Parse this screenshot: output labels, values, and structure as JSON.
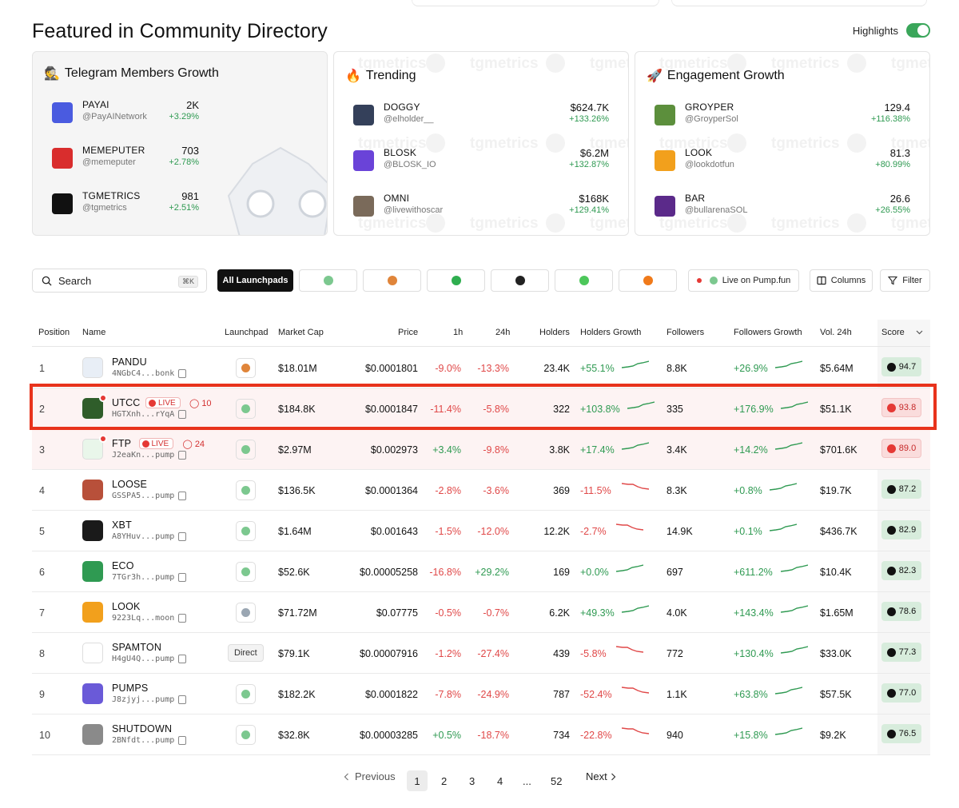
{
  "section_title": "Featured in Community Directory",
  "highlights_label": "Highlights",
  "watermark": "tgmetrics",
  "cards": [
    {
      "title": "Telegram Members Growth",
      "emoji": "🕵",
      "rows": [
        {
          "name": "PAYAI",
          "handle": "@PayAINetwork",
          "value": "2K",
          "change": "+3.29%",
          "color": "#4a5be0"
        },
        {
          "name": "MEMEPUTER",
          "handle": "@memeputer",
          "value": "703",
          "change": "+2.78%",
          "color": "#d92d2d"
        },
        {
          "name": "TGMETRICS",
          "handle": "@tgmetrics",
          "value": "981",
          "change": "+2.51%",
          "color": "#111111"
        }
      ]
    },
    {
      "title": "Trending",
      "emoji": "🔥",
      "rows": [
        {
          "name": "DOGGY",
          "handle": "@elholder__",
          "value": "$624.7K",
          "change": "+133.26%",
          "color": "#34405a"
        },
        {
          "name": "BLOSK",
          "handle": "@BLOSK_IO",
          "value": "$6.2M",
          "change": "+132.87%",
          "color": "#6a43d8"
        },
        {
          "name": "OMNI",
          "handle": "@livewithoscar",
          "value": "$168K",
          "change": "+129.41%",
          "color": "#7a6a5a"
        }
      ]
    },
    {
      "title": "Engagement Growth",
      "emoji": "🚀",
      "rows": [
        {
          "name": "GROYPER",
          "handle": "@GroyperSol",
          "value": "129.4",
          "change": "+116.38%",
          "color": "#5c8f3c"
        },
        {
          "name": "LOOK",
          "handle": "@lookdotfun",
          "value": "81.3",
          "change": "+80.99%",
          "color": "#f2a01c"
        },
        {
          "name": "BAR",
          "handle": "@bullarenaSOL",
          "value": "26.6",
          "change": "+26.55%",
          "color": "#5b2a8a"
        }
      ]
    }
  ],
  "toolbar": {
    "search_placeholder": "Search",
    "search_shortcut": "⌘K",
    "all_launchpads": "All Launchpads",
    "launchpad_icons": [
      {
        "name": "pump-icon",
        "color": "#7cc88f"
      },
      {
        "name": "bonk-icon",
        "color": "#e0853a"
      },
      {
        "name": "moon-icon",
        "color": "#2fae4f"
      },
      {
        "name": "orbit-icon",
        "color": "#222222"
      },
      {
        "name": "b-icon",
        "color": "#4cc75a"
      },
      {
        "name": "pac-icon",
        "color": "#f07a1a"
      }
    ],
    "live_on_pump": "Live on Pump.fun",
    "columns": "Columns",
    "filter": "Filter"
  },
  "table": {
    "headers": {
      "position": "Position",
      "name": "Name",
      "launchpad": "Launchpad",
      "market_cap": "Market Cap",
      "price": "Price",
      "h1": "1h",
      "h24": "24h",
      "holders": "Holders",
      "holders_growth": "Holders Growth",
      "followers": "Followers",
      "followers_growth": "Followers Growth",
      "vol24": "Vol. 24h",
      "score": "Score"
    },
    "rows": [
      {
        "pos": "1",
        "name": "PANDU",
        "addr": "4NGbC4...bonk",
        "live": "",
        "viewers": "",
        "launchpad": "bonk",
        "mcap": "$18.01M",
        "price": "$0.0001801",
        "h1": "-9.0%",
        "h24": "-13.3%",
        "holders": "23.4K",
        "hgrow": "+55.1%",
        "followers": "8.8K",
        "fgrow": "+26.9%",
        "vol": "$5.64M",
        "score": "94.7",
        "score_tone": "green",
        "color": "#e8eef6",
        "text": "🐼"
      },
      {
        "pos": "2",
        "name": "UTCC",
        "addr": "HGTXnh...rYqA",
        "live": "LIVE",
        "viewers": "10",
        "launchpad": "pump",
        "mcap": "$184.8K",
        "price": "$0.0001847",
        "h1": "-11.4%",
        "h24": "-5.8%",
        "holders": "322",
        "hgrow": "+103.8%",
        "followers": "335",
        "fgrow": "+176.9%",
        "vol": "$51.1K",
        "score": "93.8",
        "score_tone": "red",
        "color": "#2f5d2a",
        "text": "UC"
      },
      {
        "pos": "3",
        "name": "FTP",
        "addr": "J2eaKn...pump",
        "live": "LIVE",
        "viewers": "24",
        "launchpad": "pump",
        "mcap": "$2.97M",
        "price": "$0.002973",
        "h1": "+3.4%",
        "h24": "-9.8%",
        "holders": "3.8K",
        "hgrow": "+17.4%",
        "followers": "3.4K",
        "fgrow": "+14.2%",
        "vol": "$701.6K",
        "score": "89.0",
        "score_tone": "red",
        "color": "#e9f6ea",
        "text": "FTP"
      },
      {
        "pos": "4",
        "name": "LOOSE",
        "addr": "GSSPA5...pump",
        "live": "",
        "viewers": "",
        "launchpad": "pump",
        "mcap": "$136.5K",
        "price": "$0.0001364",
        "h1": "-2.8%",
        "h24": "-3.6%",
        "holders": "369",
        "hgrow": "-11.5%",
        "followers": "8.3K",
        "fgrow": "+0.8%",
        "vol": "$19.7K",
        "score": "87.2",
        "score_tone": "green",
        "color": "#b8503a",
        "text": ""
      },
      {
        "pos": "5",
        "name": "XBT",
        "addr": "A8YHuv...pump",
        "live": "",
        "viewers": "",
        "launchpad": "pump",
        "mcap": "$1.64M",
        "price": "$0.001643",
        "h1": "-1.5%",
        "h24": "-12.0%",
        "holders": "12.2K",
        "hgrow": "-2.7%",
        "followers": "14.9K",
        "fgrow": "+0.1%",
        "vol": "$436.7K",
        "score": "82.9",
        "score_tone": "green",
        "color": "#1a1a1a",
        "text": "XBT"
      },
      {
        "pos": "6",
        "name": "ECO",
        "addr": "7TGr3h...pump",
        "live": "",
        "viewers": "",
        "launchpad": "pump",
        "mcap": "$52.6K",
        "price": "$0.00005258",
        "h1": "-16.8%",
        "h24": "+29.2%",
        "holders": "169",
        "hgrow": "+0.0%",
        "followers": "697",
        "fgrow": "+611.2%",
        "vol": "$10.4K",
        "score": "82.3",
        "score_tone": "green",
        "color": "#2f9a52",
        "text": ""
      },
      {
        "pos": "7",
        "name": "LOOK",
        "addr": "9223Lq...moon",
        "live": "",
        "viewers": "",
        "launchpad": "moon",
        "mcap": "$71.72M",
        "price": "$0.07775",
        "h1": "-0.5%",
        "h24": "-0.7%",
        "holders": "6.2K",
        "hgrow": "+49.3%",
        "followers": "4.0K",
        "fgrow": "+143.4%",
        "vol": "$1.65M",
        "score": "78.6",
        "score_tone": "green",
        "color": "#f2a01c",
        "text": ""
      },
      {
        "pos": "8",
        "name": "SPAMTON",
        "addr": "H4gU4Q...pump",
        "live": "",
        "viewers": "",
        "launchpad": "direct",
        "launchpad_label": "Direct",
        "mcap": "$79.1K",
        "price": "$0.00007916",
        "h1": "-1.2%",
        "h24": "-27.4%",
        "holders": "439",
        "hgrow": "-5.8%",
        "followers": "772",
        "fgrow": "+130.4%",
        "vol": "$33.0K",
        "score": "77.3",
        "score_tone": "green",
        "color": "#ffffff",
        "text": ""
      },
      {
        "pos": "9",
        "name": "PUMPS",
        "addr": "J8zjyj...pump",
        "live": "",
        "viewers": "",
        "launchpad": "pump",
        "mcap": "$182.2K",
        "price": "$0.0001822",
        "h1": "-7.8%",
        "h24": "-24.9%",
        "holders": "787",
        "hgrow": "-52.4%",
        "followers": "1.1K",
        "fgrow": "+63.8%",
        "vol": "$57.5K",
        "score": "77.0",
        "score_tone": "green",
        "color": "#6a5ad8",
        "text": ""
      },
      {
        "pos": "10",
        "name": "SHUTDOWN",
        "addr": "2BNfdt...pump",
        "live": "",
        "viewers": "",
        "launchpad": "pump",
        "mcap": "$32.8K",
        "price": "$0.00003285",
        "h1": "+0.5%",
        "h24": "-18.7%",
        "holders": "734",
        "hgrow": "-22.8%",
        "followers": "940",
        "fgrow": "+15.8%",
        "vol": "$9.2K",
        "score": "76.5",
        "score_tone": "green",
        "color": "#8a8a8a",
        "text": ""
      }
    ]
  },
  "pagination": {
    "previous": "Previous",
    "pages": [
      "1",
      "2",
      "3",
      "4",
      "...",
      "52"
    ],
    "current": "1",
    "next": "Next"
  }
}
